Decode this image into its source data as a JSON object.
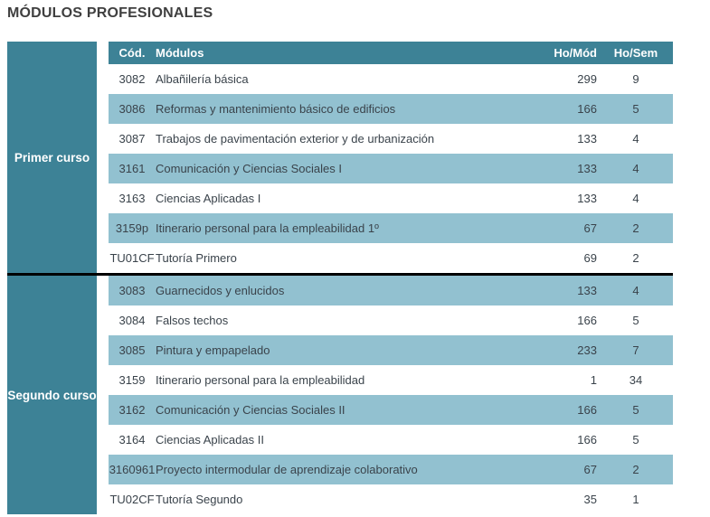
{
  "title": "MÓDULOS PROFESIONALES",
  "colors": {
    "teal": "#3d8296",
    "light_blue": "#92c1d0",
    "row_text": "#3a434b",
    "title_text": "#3f3f3f",
    "divider": "#000000"
  },
  "table": {
    "headers": {
      "code": "Cód.",
      "module": "Módulos",
      "hours_module": "Ho/Mód",
      "hours_week": "Ho/Sem"
    },
    "groups": [
      {
        "label": "Primer curso",
        "rows": [
          {
            "code": "3082",
            "module": "Albañilería básica",
            "hours_module": "299",
            "hours_week": "9"
          },
          {
            "code": "3086",
            "module": "Reformas y mantenimiento básico de edificios",
            "hours_module": "166",
            "hours_week": "5"
          },
          {
            "code": "3087",
            "module": "Trabajos de pavimentación exterior y de urbanización",
            "hours_module": "133",
            "hours_week": "4"
          },
          {
            "code": "3161",
            "module": "Comunicación y Ciencias Sociales I",
            "hours_module": "133",
            "hours_week": "4"
          },
          {
            "code": "3163",
            "module": "Ciencias Aplicadas I",
            "hours_module": "133",
            "hours_week": "4"
          },
          {
            "code": "3159p",
            "module": "Itinerario personal para la empleabilidad 1º",
            "hours_module": "67",
            "hours_week": "2"
          },
          {
            "code": "TU01CF",
            "module": "Tutoría Primero",
            "hours_module": "69",
            "hours_week": "2"
          }
        ]
      },
      {
        "label": "Segundo curso",
        "rows": [
          {
            "code": "3083",
            "module": "Guarnecidos y enlucidos",
            "hours_module": "133",
            "hours_week": "4"
          },
          {
            "code": "3084",
            "module": "Falsos techos",
            "hours_module": "166",
            "hours_week": "5"
          },
          {
            "code": "3085",
            "module": "Pintura y empapelado",
            "hours_module": "233",
            "hours_week": "7"
          },
          {
            "code": "3159",
            "module": "Itinerario personal para la empleabilidad",
            "hours_module": "1",
            "hours_week": "34"
          },
          {
            "code": "3162",
            "module": "Comunicación y Ciencias Sociales II",
            "hours_module": "166",
            "hours_week": "5"
          },
          {
            "code": "3164",
            "module": "Ciencias Aplicadas II",
            "hours_module": "166",
            "hours_week": "5"
          },
          {
            "code": "3160961",
            "module": "Proyecto intermodular de aprendizaje colaborativo",
            "hours_module": "67",
            "hours_week": "2"
          },
          {
            "code": "TU02CF",
            "module": "Tutoría Segundo",
            "hours_module": "35",
            "hours_week": "1"
          }
        ]
      }
    ]
  }
}
